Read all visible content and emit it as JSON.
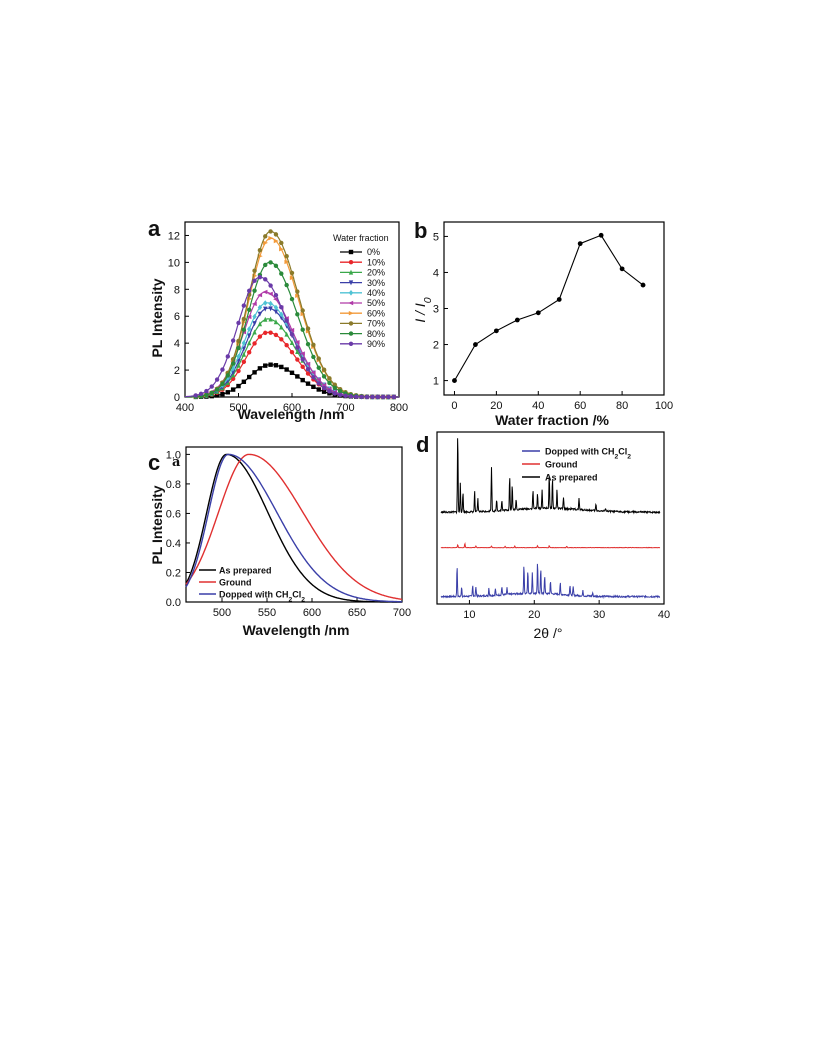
{
  "figure": {
    "panel_letters": [
      "a",
      "b",
      "c",
      "d"
    ],
    "inset_letter_c": "a"
  },
  "chart_data": [
    {
      "panel": "a",
      "type": "line",
      "xlabel": "Wavelength /nm",
      "ylabel": "PL Intensity",
      "xlim": [
        400,
        800
      ],
      "ylim": [
        0,
        13
      ],
      "xticks": [
        "400",
        "500",
        "600",
        "700",
        "800"
      ],
      "yticks": [
        "0",
        "2",
        "4",
        "6",
        "8",
        "10",
        "12"
      ],
      "legend_title": "Water fraction",
      "legend_position": "top-right",
      "curve_model": {
        "peak_wavelength_nm": 560,
        "fwhm_left_nm": 48,
        "fwhm_right_nm": 62
      },
      "series": [
        {
          "name": "0%",
          "peak_wavelength": 560,
          "peak": 2.4,
          "color": "#000000",
          "marker": "square"
        },
        {
          "name": "10%",
          "peak_wavelength": 555,
          "peak": 4.8,
          "color": "#e8262a",
          "marker": "circle"
        },
        {
          "name": "20%",
          "peak_wavelength": 555,
          "peak": 5.8,
          "color": "#3aa84a",
          "marker": "triangle-up"
        },
        {
          "name": "30%",
          "peak_wavelength": 555,
          "peak": 6.6,
          "color": "#3a3fa8",
          "marker": "triangle-down"
        },
        {
          "name": "40%",
          "peak_wavelength": 553,
          "peak": 7.0,
          "color": "#4fc3d4",
          "marker": "diamond"
        },
        {
          "name": "50%",
          "peak_wavelength": 550,
          "peak": 7.8,
          "color": "#b03aa8",
          "marker": "triangle-left"
        },
        {
          "name": "60%",
          "peak_wavelength": 560,
          "peak": 11.8,
          "color": "#f29a3a",
          "marker": "triangle-right"
        },
        {
          "name": "70%",
          "peak_wavelength": 560,
          "peak": 12.3,
          "color": "#8a7a2a",
          "marker": "hexagon"
        },
        {
          "name": "80%",
          "peak_wavelength": 558,
          "peak": 10.0,
          "color": "#2a8a3a",
          "marker": "star"
        },
        {
          "name": "90%",
          "peak_wavelength": 540,
          "peak": 8.9,
          "color": "#6a3aa8",
          "marker": "pentagon"
        }
      ]
    },
    {
      "panel": "b",
      "type": "line",
      "xlabel": "Water fraction /%",
      "ylabel": "I / I0",
      "xlim": [
        -5,
        100
      ],
      "ylim": [
        0.6,
        5.4
      ],
      "xticks": [
        "0",
        "20",
        "40",
        "60",
        "80",
        "100"
      ],
      "yticks": [
        "1",
        "2",
        "3",
        "4",
        "5"
      ],
      "x": [
        0,
        10,
        20,
        30,
        40,
        50,
        60,
        70,
        80,
        90
      ],
      "y": [
        1.0,
        2.0,
        2.38,
        2.68,
        2.88,
        3.25,
        4.8,
        5.03,
        4.1,
        3.65
      ]
    },
    {
      "panel": "c",
      "type": "line",
      "xlabel": "Wavelength /nm",
      "ylabel": "PL Intensity",
      "xlim": [
        460,
        700
      ],
      "ylim": [
        0,
        1.05
      ],
      "xticks": [
        "500",
        "550",
        "600",
        "650",
        "700"
      ],
      "yticks": [
        "0.0",
        "0.2",
        "0.4",
        "0.6",
        "0.8",
        "1.0"
      ],
      "legend_position": "bottom-left",
      "series": [
        {
          "name": "As prepared",
          "peak_wavelength": 505,
          "sigma_left": 22,
          "sigma_right": 46,
          "color": "#000000"
        },
        {
          "name": "Ground",
          "peak_wavelength": 530,
          "sigma_left": 34,
          "sigma_right": 60,
          "color": "#e03030"
        },
        {
          "name": "Dopped with CH2Cl2",
          "peak_wavelength": 507,
          "sigma_left": 22,
          "sigma_right": 54,
          "color": "#3a3fa8"
        }
      ]
    },
    {
      "panel": "d",
      "type": "line",
      "xlabel": "2θ /°",
      "xlim": [
        5,
        40
      ],
      "xticks": [
        "10",
        "20",
        "30",
        "40"
      ],
      "legend_position": "top-right",
      "series": [
        {
          "name": "Dopped with CH2Cl2",
          "color": "#3a3fa8",
          "baseline": 0.0,
          "peaks": [
            [
              8.1,
              0.95
            ],
            [
              8.8,
              0.3
            ],
            [
              10.5,
              0.35
            ],
            [
              11.0,
              0.3
            ],
            [
              13.0,
              0.25
            ],
            [
              14.0,
              0.2
            ],
            [
              15.0,
              0.25
            ],
            [
              15.8,
              0.2
            ],
            [
              18.4,
              0.85
            ],
            [
              19.0,
              0.7
            ],
            [
              19.7,
              0.65
            ],
            [
              20.5,
              0.95
            ],
            [
              21.0,
              0.75
            ],
            [
              21.6,
              0.55
            ],
            [
              22.5,
              0.4
            ],
            [
              24.0,
              0.35
            ],
            [
              25.5,
              0.3
            ],
            [
              26.0,
              0.25
            ],
            [
              27.5,
              0.15
            ],
            [
              29.0,
              0.1
            ]
          ]
        },
        {
          "name": "Ground",
          "color": "#e03030",
          "baseline": 1.5,
          "peaks": [
            [
              8.2,
              0.08
            ],
            [
              9.3,
              0.12
            ],
            [
              11.0,
              0.05
            ],
            [
              13.4,
              0.05
            ],
            [
              15.5,
              0.04
            ],
            [
              17.0,
              0.05
            ],
            [
              20.5,
              0.06
            ],
            [
              22.3,
              0.06
            ],
            [
              25.0,
              0.04
            ]
          ]
        },
        {
          "name": "As prepared",
          "color": "#000000",
          "baseline": 2.55,
          "peaks": [
            [
              8.2,
              2.4
            ],
            [
              8.6,
              0.9
            ],
            [
              9.0,
              0.6
            ],
            [
              10.8,
              0.65
            ],
            [
              11.3,
              0.4
            ],
            [
              13.4,
              1.35
            ],
            [
              14.2,
              0.35
            ],
            [
              15.0,
              0.3
            ],
            [
              16.2,
              1.05
            ],
            [
              16.6,
              0.75
            ],
            [
              17.2,
              0.3
            ],
            [
              19.8,
              0.55
            ],
            [
              20.5,
              0.45
            ],
            [
              21.2,
              0.55
            ],
            [
              22.3,
              1.05
            ],
            [
              22.8,
              0.9
            ],
            [
              23.5,
              0.6
            ],
            [
              24.5,
              0.35
            ],
            [
              26.9,
              0.35
            ],
            [
              29.5,
              0.2
            ],
            [
              31.0,
              0.1
            ]
          ]
        }
      ]
    }
  ]
}
